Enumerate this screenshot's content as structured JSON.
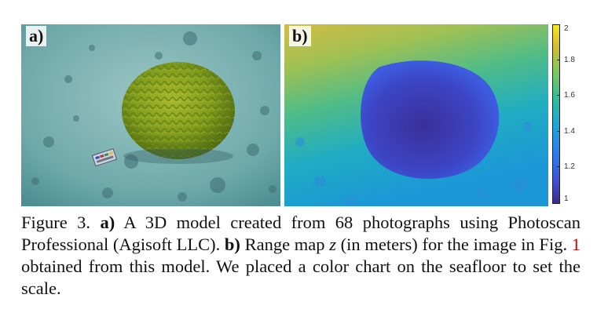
{
  "figure": {
    "panel_a_label": "a)",
    "panel_b_label": "b)",
    "colorbar": {
      "colormap": "parula",
      "ticks": [
        "2",
        "1.8",
        "1.6",
        "1.4",
        "1.2",
        "1"
      ]
    },
    "caption": {
      "lead": "Figure 3. ",
      "a_marker": "a)",
      "a_text": " A 3D model created from 68 photographs using Photoscan Professional (Agisoft LLC). ",
      "b_marker": "b)",
      "b_text1": " Range map ",
      "var": "z",
      "b_text2": " (in meters) for the image in Fig. ",
      "ref": "1",
      "b_text3": " obtained from this model.  We placed a color chart on the seafloor to set the scale."
    }
  }
}
